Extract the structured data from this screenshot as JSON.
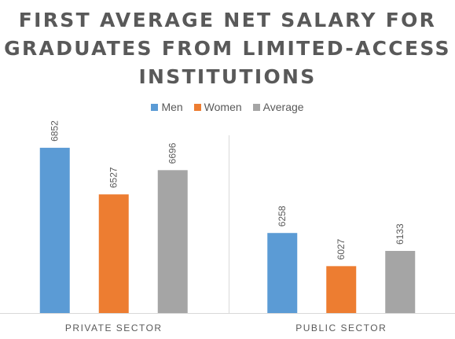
{
  "chart_data": {
    "type": "bar",
    "title_lines": [
      "FIRST AVERAGE NET SALARY FOR",
      "GRADUATES FROM LIMITED-ACCESS",
      "INSTITUTIONS"
    ],
    "categories": [
      "PRIVATE SECTOR",
      "PUBLIC SECTOR"
    ],
    "series": [
      {
        "name": "Men",
        "values": [
          6852,
          6258
        ],
        "color": "#5B9BD5"
      },
      {
        "name": "Women",
        "values": [
          6527,
          6027
        ],
        "color": "#ED7D31"
      },
      {
        "name": "Average",
        "values": [
          6696,
          6133
        ],
        "color": "#A5A5A5"
      }
    ],
    "ylim": [
      5700,
      6950
    ],
    "legend_position": "top",
    "grid": false,
    "xlabel": "",
    "ylabel": ""
  }
}
